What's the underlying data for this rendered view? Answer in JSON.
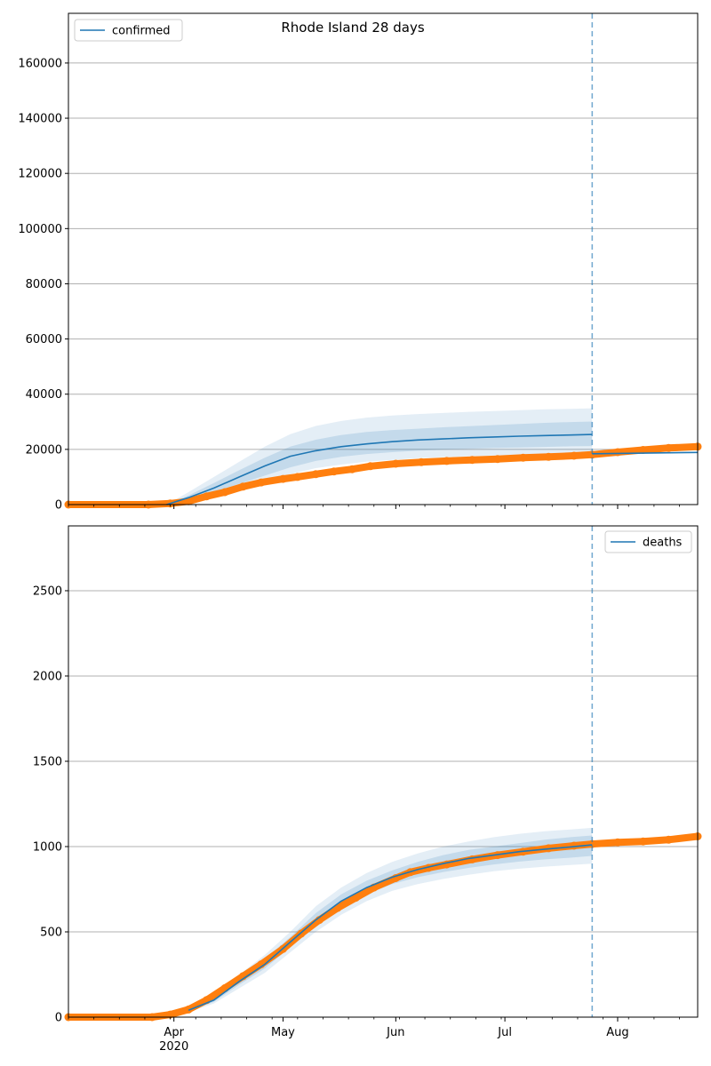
{
  "title": "Rhode Island 28 days",
  "colors": {
    "model": "#1f77b4",
    "observed": "#ff7f0e",
    "vline": "#1f77b4",
    "grid": "#b0b0b0"
  },
  "x_ticks": [
    {
      "date": "2020-04-01",
      "label": "Apr",
      "sublabel": "2020"
    },
    {
      "date": "2020-05-01",
      "label": "May",
      "sublabel": ""
    },
    {
      "date": "2020-06-01",
      "label": "Jun",
      "sublabel": ""
    },
    {
      "date": "2020-07-01",
      "label": "Jul",
      "sublabel": ""
    },
    {
      "date": "2020-08-01",
      "label": "Aug",
      "sublabel": ""
    }
  ],
  "chart_data": [
    {
      "type": "line",
      "name": "confirmed",
      "legend": "confirmed",
      "legend_position": "top-left",
      "grid": true,
      "xlim": [
        "2020-03-03",
        "2020-08-23"
      ],
      "ylim": [
        0,
        178000
      ],
      "yticks": [
        0,
        20000,
        40000,
        60000,
        80000,
        100000,
        120000,
        140000,
        160000
      ],
      "forecast_start": "2020-07-25",
      "model": {
        "x": [
          "2020-03-30",
          "2020-04-05",
          "2020-04-12",
          "2020-04-19",
          "2020-04-26",
          "2020-05-03",
          "2020-05-10",
          "2020-05-17",
          "2020-05-24",
          "2020-05-31",
          "2020-06-07",
          "2020-06-14",
          "2020-06-21",
          "2020-06-28",
          "2020-07-05",
          "2020-07-12",
          "2020-07-19",
          "2020-07-25"
        ],
        "y": [
          0,
          2500,
          6000,
          10000,
          14000,
          17500,
          19500,
          21000,
          22000,
          22800,
          23400,
          23800,
          24200,
          24500,
          24800,
          25000,
          25200,
          25400
        ],
        "band50_low": [
          0,
          1800,
          4500,
          7500,
          10500,
          13500,
          15800,
          17300,
          18300,
          19000,
          19500,
          19900,
          20200,
          20500,
          20700,
          20900,
          21100,
          21200
        ],
        "band50_high": [
          0,
          3300,
          7800,
          12500,
          17000,
          21000,
          23500,
          25200,
          26300,
          27000,
          27500,
          28000,
          28400,
          28800,
          29200,
          29600,
          29900,
          30100
        ],
        "band90_low": [
          0,
          1000,
          3000,
          5500,
          8000,
          11000,
          13200,
          14500,
          15500,
          16200,
          16800,
          17200,
          17500,
          17800,
          18000,
          18200,
          18300,
          18400
        ],
        "band90_high": [
          0,
          4500,
          10000,
          15500,
          21000,
          25500,
          28500,
          30300,
          31500,
          32300,
          32800,
          33200,
          33600,
          33900,
          34200,
          34500,
          34700,
          34900
        ]
      },
      "after_forecast": {
        "x": [
          "2020-07-25",
          "2020-08-23"
        ],
        "y": [
          18400,
          18900
        ]
      },
      "observed": {
        "x": [
          "2020-03-03",
          "2020-03-25",
          "2020-03-31",
          "2020-04-05",
          "2020-04-10",
          "2020-04-15",
          "2020-04-20",
          "2020-04-25",
          "2020-05-01",
          "2020-05-05",
          "2020-05-10",
          "2020-05-15",
          "2020-05-20",
          "2020-05-25",
          "2020-06-01",
          "2020-06-08",
          "2020-06-15",
          "2020-06-22",
          "2020-06-29",
          "2020-07-06",
          "2020-07-13",
          "2020-07-20",
          "2020-07-25",
          "2020-08-01",
          "2020-08-08",
          "2020-08-15",
          "2020-08-23"
        ],
        "y": [
          0,
          0,
          400,
          1200,
          3000,
          4500,
          6500,
          8000,
          9300,
          10000,
          11000,
          12000,
          12800,
          13900,
          14800,
          15400,
          15800,
          16200,
          16500,
          17000,
          17300,
          17700,
          18100,
          19000,
          19800,
          20500,
          21000
        ]
      }
    },
    {
      "type": "line",
      "name": "deaths",
      "legend": "deaths",
      "legend_position": "top-right",
      "grid": true,
      "xlim": [
        "2020-03-03",
        "2020-08-23"
      ],
      "ylim": [
        0,
        2880
      ],
      "yticks": [
        0,
        500,
        1000,
        1500,
        2000,
        2500
      ],
      "forecast_start": "2020-07-25",
      "model": {
        "x": [
          "2020-04-05",
          "2020-04-12",
          "2020-04-19",
          "2020-04-26",
          "2020-05-03",
          "2020-05-10",
          "2020-05-17",
          "2020-05-24",
          "2020-05-31",
          "2020-06-07",
          "2020-06-14",
          "2020-06-21",
          "2020-06-28",
          "2020-07-05",
          "2020-07-12",
          "2020-07-19",
          "2020-07-25"
        ],
        "y": [
          40,
          100,
          210,
          310,
          440,
          570,
          680,
          760,
          820,
          865,
          900,
          930,
          950,
          970,
          985,
          998,
          1010
        ],
        "band50_low": [
          35,
          90,
          190,
          285,
          410,
          530,
          640,
          720,
          780,
          820,
          850,
          875,
          895,
          912,
          925,
          935,
          945
        ],
        "band50_high": [
          45,
          110,
          230,
          340,
          470,
          610,
          720,
          800,
          860,
          910,
          950,
          980,
          1000,
          1020,
          1040,
          1055,
          1065
        ],
        "band90_low": [
          30,
          80,
          170,
          260,
          380,
          500,
          600,
          680,
          740,
          780,
          810,
          835,
          855,
          870,
          882,
          892,
          900
        ],
        "band90_high": [
          50,
          125,
          250,
          365,
          500,
          650,
          760,
          845,
          910,
          960,
          1000,
          1030,
          1055,
          1075,
          1090,
          1100,
          1110
        ]
      },
      "observed": {
        "x": [
          "2020-03-03",
          "2020-03-26",
          "2020-03-31",
          "2020-04-05",
          "2020-04-10",
          "2020-04-15",
          "2020-04-20",
          "2020-04-25",
          "2020-05-01",
          "2020-05-06",
          "2020-05-11",
          "2020-05-16",
          "2020-05-21",
          "2020-05-26",
          "2020-06-01",
          "2020-06-05",
          "2020-06-10",
          "2020-06-15",
          "2020-06-22",
          "2020-06-29",
          "2020-07-06",
          "2020-07-13",
          "2020-07-20",
          "2020-07-25",
          "2020-08-01",
          "2020-08-08",
          "2020-08-15",
          "2020-08-23"
        ],
        "y": [
          0,
          0,
          15,
          45,
          100,
          170,
          240,
          310,
          400,
          490,
          570,
          640,
          700,
          760,
          815,
          850,
          875,
          895,
          925,
          950,
          970,
          990,
          1005,
          1015,
          1025,
          1030,
          1040,
          1060
        ]
      }
    }
  ]
}
